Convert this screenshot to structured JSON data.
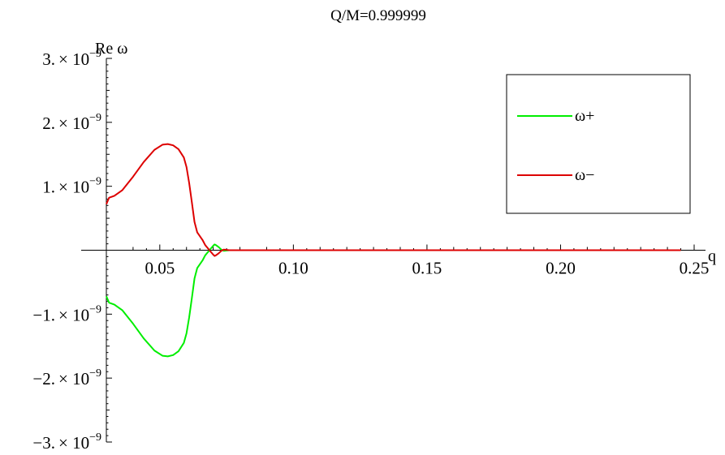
{
  "chart_data": {
    "type": "line",
    "title": "Q/M=0.999999",
    "xlabel": "q",
    "ylabel": "Re ω",
    "xlim": [
      0.03,
      0.25
    ],
    "ylim": [
      -3e-09,
      3e-09
    ],
    "grid": false,
    "legend_position": "top-right",
    "x_ticks": [
      {
        "value": 0.05,
        "label": "0.05"
      },
      {
        "value": 0.1,
        "label": "0.10"
      },
      {
        "value": 0.15,
        "label": "0.15"
      },
      {
        "value": 0.2,
        "label": "0.20"
      },
      {
        "value": 0.25,
        "label": "0.25"
      }
    ],
    "y_ticks": [
      {
        "value": 3e-09,
        "mantissa": "3.",
        "base": "× 10",
        "exponent": "−9"
      },
      {
        "value": 2e-09,
        "mantissa": "2.",
        "base": "× 10",
        "exponent": "−9"
      },
      {
        "value": 1e-09,
        "mantissa": "1.",
        "base": "× 10",
        "exponent": "−9"
      },
      {
        "value": -1e-09,
        "mantissa": "−1.",
        "base": "× 10",
        "exponent": "−9"
      },
      {
        "value": -2e-09,
        "mantissa": "−2.",
        "base": "× 10",
        "exponent": "−9"
      },
      {
        "value": -3e-09,
        "mantissa": "−3.",
        "base": "× 10",
        "exponent": "−9"
      }
    ],
    "series": [
      {
        "name": "ω+",
        "color": "#00ee00",
        "x": [
          0.03,
          0.031,
          0.033,
          0.036,
          0.04,
          0.044,
          0.048,
          0.051,
          0.053,
          0.055,
          0.057,
          0.059,
          0.06,
          0.061,
          0.062,
          0.063,
          0.064,
          0.065,
          0.066,
          0.067,
          0.068,
          0.069,
          0.07,
          0.0705,
          0.071,
          0.072,
          0.073,
          0.074,
          0.076,
          0.08,
          0.09,
          0.1,
          0.15,
          0.2,
          0.245
        ],
        "y": [
          -7.2e-10,
          -8.2e-10,
          -8.5e-10,
          -9.4e-10,
          -1.15e-09,
          -1.38e-09,
          -1.57e-09,
          -1.65e-09,
          -1.66e-09,
          -1.64e-09,
          -1.58e-09,
          -1.45e-09,
          -1.3e-09,
          -1.05e-09,
          -7.5e-10,
          -4.4e-10,
          -2.8e-10,
          -2.2e-10,
          -1.6e-10,
          -8e-11,
          -3e-11,
          2e-11,
          7e-11,
          9e-11,
          8e-11,
          5e-11,
          1e-11,
          -1e-11,
          0,
          0,
          0,
          0,
          0,
          0,
          0
        ]
      },
      {
        "name": "ω−",
        "color": "#dd0000",
        "x": [
          0.03,
          0.031,
          0.033,
          0.036,
          0.04,
          0.044,
          0.048,
          0.051,
          0.053,
          0.055,
          0.057,
          0.059,
          0.06,
          0.061,
          0.062,
          0.063,
          0.064,
          0.065,
          0.066,
          0.067,
          0.068,
          0.069,
          0.07,
          0.0705,
          0.071,
          0.072,
          0.073,
          0.074,
          0.076,
          0.08,
          0.09,
          0.1,
          0.15,
          0.2,
          0.245
        ],
        "y": [
          7.2e-10,
          8.2e-10,
          8.5e-10,
          9.4e-10,
          1.15e-09,
          1.38e-09,
          1.57e-09,
          1.65e-09,
          1.66e-09,
          1.64e-09,
          1.58e-09,
          1.45e-09,
          1.3e-09,
          1.05e-09,
          7.5e-10,
          4.4e-10,
          2.8e-10,
          2.2e-10,
          1.6e-10,
          8e-11,
          3e-11,
          -2e-11,
          -7e-11,
          -9e-11,
          -8e-11,
          -5e-11,
          -1e-11,
          1e-11,
          0,
          0,
          0,
          0,
          0,
          0,
          0
        ]
      }
    ]
  }
}
